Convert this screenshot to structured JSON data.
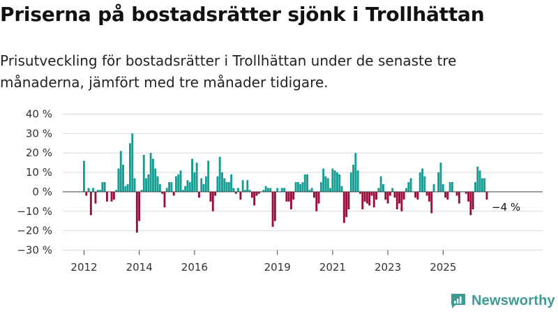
{
  "title": "Priserna på bostadsrätter sjönk i Trollhättan",
  "subtitle": "Prisutveckling för bostadsrätter i Trollhättan under de senaste tre månaderna, jämfört med tre månader tidigare.",
  "brand": {
    "name": "Newsworthy",
    "color": "#3d9a93"
  },
  "chart_data": {
    "type": "bar",
    "x_start": "2012-01",
    "x_end": "2025-07",
    "y_ticks": [
      -30,
      -20,
      -10,
      0,
      10,
      20,
      30,
      40
    ],
    "y_tick_labels": [
      "−30 %",
      "−20 %",
      "−10 %",
      "0 %",
      "10 %",
      "20 %",
      "30 %",
      "40 %"
    ],
    "ylim": [
      -30,
      40
    ],
    "x_ticks": [
      {
        "label": "2012",
        "x": "2012-01"
      },
      {
        "label": "2014",
        "x": "2014-01"
      },
      {
        "label": "2016",
        "x": "2016-01"
      },
      {
        "label": "2019",
        "x": "2019-01"
      },
      {
        "label": "2021",
        "x": "2021-01"
      },
      {
        "label": "2023",
        "x": "2023-01"
      },
      {
        "label": "2025",
        "x": "2025-01"
      }
    ],
    "positive_color": "#169e95",
    "negative_color": "#9c0d3c",
    "grid": "horizontal",
    "values": [
      16,
      -2,
      2,
      -12,
      2,
      -6,
      1,
      1,
      5,
      5,
      -5,
      0,
      -5,
      -4,
      1,
      12,
      21,
      14,
      3,
      4,
      25,
      30,
      7,
      -21,
      -15,
      1,
      19,
      7,
      9,
      20,
      17,
      12,
      8,
      4,
      -1,
      -8,
      2,
      5,
      5,
      -2,
      8,
      9,
      11,
      1,
      3,
      6,
      5,
      17,
      10,
      15,
      -3,
      7,
      4,
      8,
      16,
      -5,
      -10,
      -2,
      8,
      18,
      10,
      7,
      5,
      5,
      9,
      2,
      -1,
      2,
      -4,
      6,
      1,
      6,
      1,
      -3,
      -7,
      -2,
      -1,
      0,
      1,
      3,
      2,
      2,
      -18,
      -15,
      2,
      0,
      2,
      2,
      -5,
      -5,
      -9,
      -4,
      5,
      5,
      4,
      5,
      9,
      9,
      1,
      2,
      -3,
      -10,
      -6,
      5,
      12,
      8,
      7,
      2,
      12,
      11,
      10,
      9,
      3,
      -16,
      -13,
      -9,
      10,
      14,
      20,
      11,
      -1,
      -9,
      -5,
      -6,
      -7,
      -2,
      -8,
      -4,
      2,
      8,
      4,
      -4,
      -6,
      -2,
      2,
      -3,
      -9,
      -6,
      -10,
      -4,
      2,
      5,
      7,
      0,
      -3,
      -4,
      10,
      12,
      8,
      -2,
      -5,
      -11,
      4,
      0,
      10,
      15,
      4,
      -3,
      -4,
      5,
      5,
      0,
      -2,
      -6,
      0,
      0,
      -1,
      -5,
      -12,
      -9,
      5,
      13,
      11,
      7,
      7,
      -4
    ],
    "annotation": {
      "label": "−4 %",
      "value": -4
    }
  }
}
